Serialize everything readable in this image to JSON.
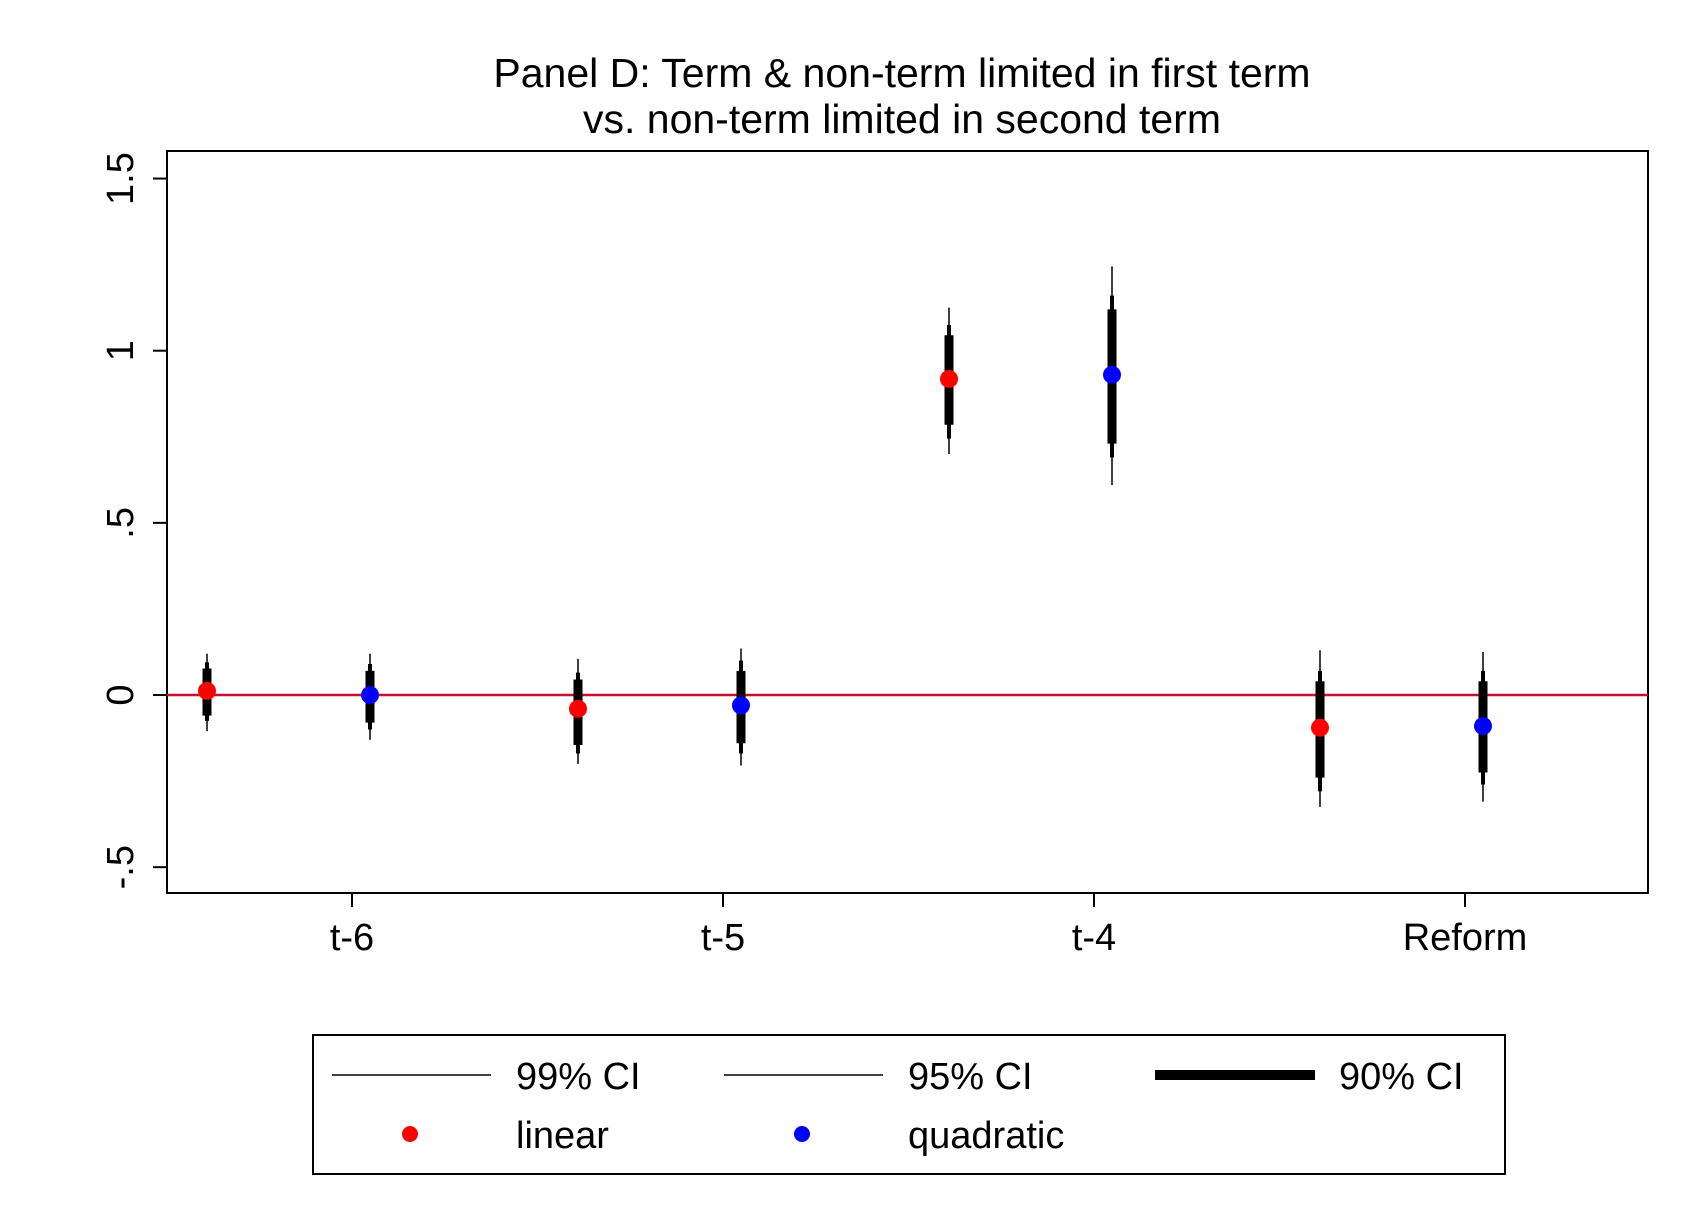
{
  "chart_data": {
    "type": "scatter",
    "title": "Panel D: Term & non-term limited in first term",
    "subtitle": "vs. non-term limited in second term",
    "xlabel": "",
    "ylabel": "",
    "categories": [
      "t-6",
      "t-5",
      "t-4",
      "Reform"
    ],
    "yticks": [
      1.5,
      1,
      0.5,
      0,
      -0.5
    ],
    "ytick_labels": [
      "1.5",
      "1",
      ".5",
      "0",
      "-.5"
    ],
    "ylim": [
      -0.575,
      1.58
    ],
    "reference_line": {
      "y": 0,
      "color": "#c8102e"
    },
    "grid": false,
    "legend_position": "bottom",
    "legend": [
      {
        "label": "99% CI",
        "kind": "line-thin"
      },
      {
        "label": "95% CI",
        "kind": "line-medium"
      },
      {
        "label": "90% CI",
        "kind": "line-thick"
      },
      {
        "label": "linear",
        "kind": "marker",
        "color": "#ff0000"
      },
      {
        "label": "quadratic",
        "kind": "marker",
        "color": "#0000ff"
      }
    ],
    "series": [
      {
        "name": "linear",
        "color": "#ff0000",
        "points": [
          {
            "category": "t-6",
            "estimate": 0.012,
            "ci99": [
              -0.105,
              0.12
            ],
            "ci95": [
              -0.075,
              0.095
            ],
            "ci90": [
              -0.06,
              0.077
            ]
          },
          {
            "category": "t-5",
            "estimate": -0.04,
            "ci99": [
              -0.2,
              0.105
            ],
            "ci95": [
              -0.17,
              0.065
            ],
            "ci90": [
              -0.145,
              0.045
            ]
          },
          {
            "category": "t-4",
            "estimate": 0.918,
            "ci99": [
              0.7,
              1.125
            ],
            "ci95": [
              0.745,
              1.075
            ],
            "ci90": [
              0.785,
              1.045
            ]
          },
          {
            "category": "Reform",
            "estimate": -0.095,
            "ci99": [
              -0.325,
              0.13
            ],
            "ci95": [
              -0.28,
              0.07
            ],
            "ci90": [
              -0.24,
              0.04
            ]
          }
        ]
      },
      {
        "name": "quadratic",
        "color": "#0000ff",
        "points": [
          {
            "category": "t-6",
            "estimate": 0.0,
            "ci99": [
              -0.13,
              0.12
            ],
            "ci95": [
              -0.1,
              0.09
            ],
            "ci90": [
              -0.08,
              0.07
            ]
          },
          {
            "category": "t-5",
            "estimate": -0.03,
            "ci99": [
              -0.205,
              0.135
            ],
            "ci95": [
              -0.17,
              0.1
            ],
            "ci90": [
              -0.14,
              0.07
            ]
          },
          {
            "category": "t-4",
            "estimate": 0.93,
            "ci99": [
              0.61,
              1.245
            ],
            "ci95": [
              0.69,
              1.16
            ],
            "ci90": [
              0.73,
              1.12
            ]
          },
          {
            "category": "Reform",
            "estimate": -0.09,
            "ci99": [
              -0.31,
              0.125
            ],
            "ci95": [
              -0.26,
              0.07
            ],
            "ci90": [
              -0.225,
              0.04
            ]
          }
        ]
      }
    ]
  }
}
